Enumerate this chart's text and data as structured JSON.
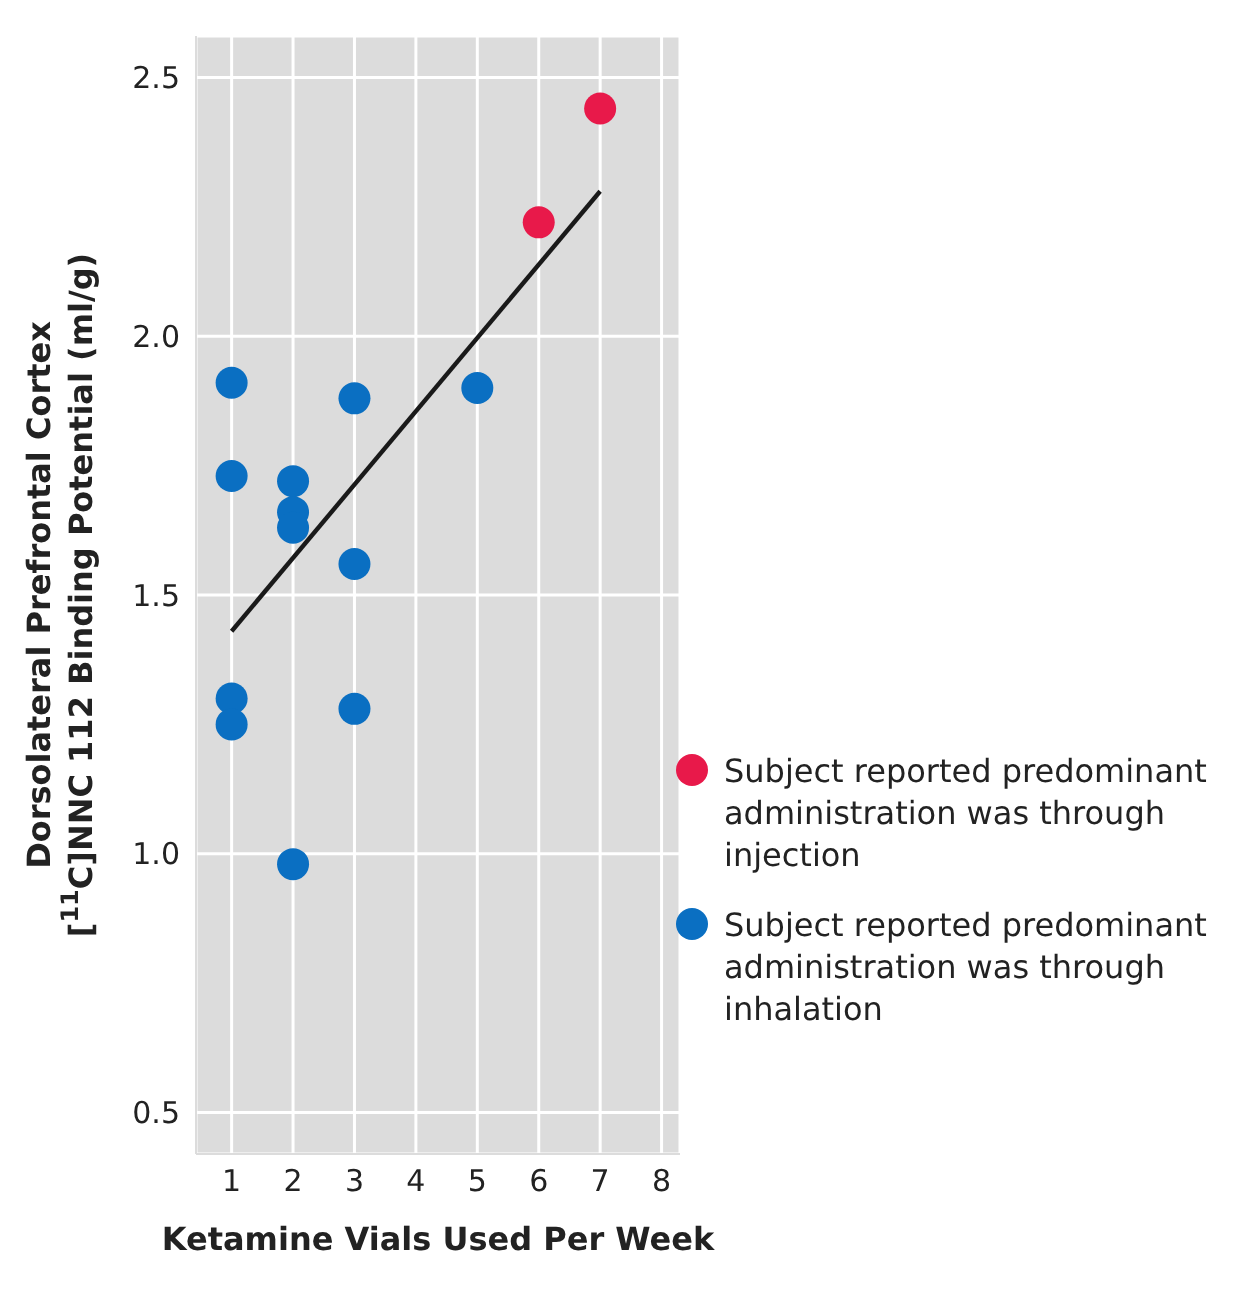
{
  "chart_data": {
    "type": "scatter",
    "xlabel": "Ketamine Vials Used Per Week",
    "ylabel": "Dorsolateral Prefrontal Cortex\n[$^{11}$C]NNC 112 Binding Potential (ml/g)",
    "xlim": [
      0.42,
      8.3
    ],
    "xticks": [
      1,
      2,
      3,
      4,
      5,
      6,
      7,
      8
    ],
    "ylim": [
      0.42,
      2.58
    ],
    "yticks": [
      {
        "value": 0.5,
        "label": "0.5"
      },
      {
        "value": 1,
        "label": "1.0"
      },
      {
        "value": 1.5,
        "label": "1.5"
      },
      {
        "value": 2,
        "label": "2.0"
      },
      {
        "value": 2.5,
        "label": "2.5"
      }
    ],
    "grid": true,
    "legend": "bottom right",
    "marker": "circle",
    "series": [
      {
        "name": "Subject reported predominant administration was through injection",
        "color": "#e8194a",
        "x": [
          6,
          7
        ],
        "values": [
          2.22,
          2.44
        ]
      },
      {
        "name": "Subject reported predominant administration was through inhalation",
        "color": "#0a6fc2",
        "x": [
          1,
          1,
          1,
          1,
          2,
          2,
          2,
          2,
          3,
          3,
          3,
          5
        ],
        "values": [
          1.91,
          1.73,
          1.3,
          1.25,
          1.72,
          1.66,
          1.63,
          0.98,
          1.88,
          1.56,
          1.28,
          1.9
        ]
      },
      {
        "type": "line",
        "color": "#1a1a1a",
        "marker": "none",
        "line_style": "solid",
        "x": [
          1,
          7
        ],
        "values": [
          1.43,
          2.28
        ]
      }
    ]
  }
}
